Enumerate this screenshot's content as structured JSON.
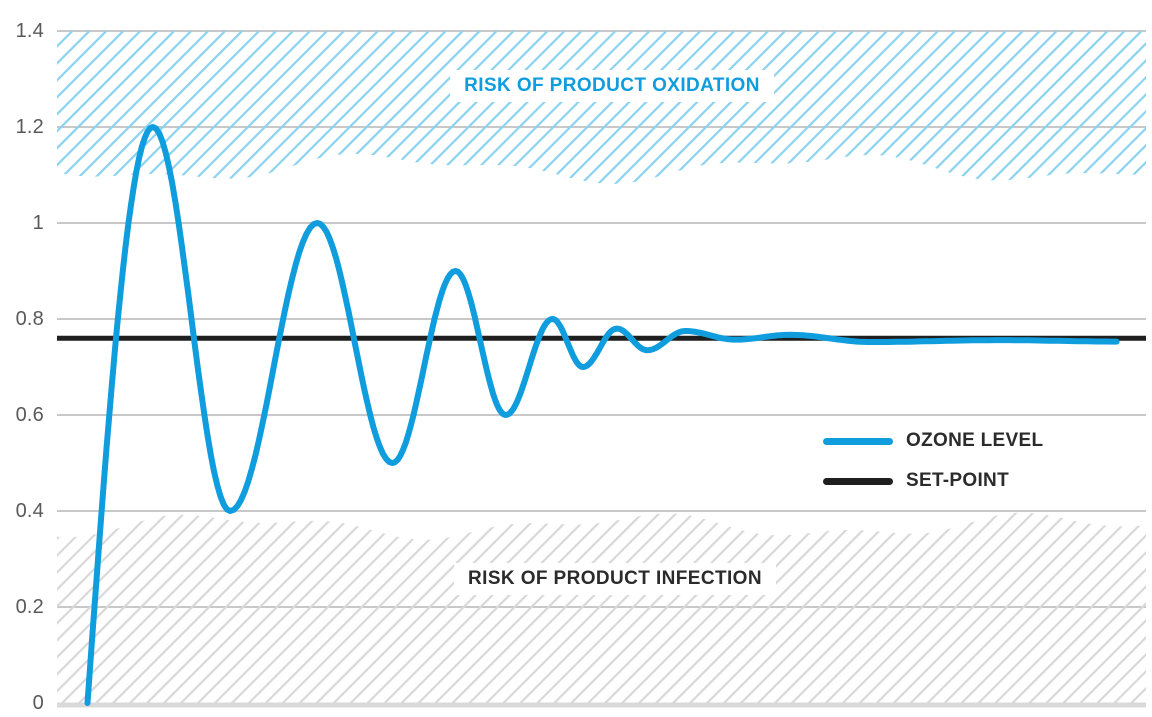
{
  "chart_data": {
    "type": "line",
    "title": "",
    "grid": "horizontal",
    "x_axis": {
      "label": "",
      "tick_labels": []
    },
    "y_axis": {
      "label": "",
      "range": [
        0,
        1.4
      ],
      "tick_values": [
        0,
        0.2,
        0.4,
        0.6,
        0.8,
        1,
        1.2,
        1.4
      ],
      "tick_labels": [
        "0",
        "0.2",
        "0.4",
        "0.6",
        "0.8",
        "1",
        "1.2",
        "1.4"
      ]
    },
    "series": [
      {
        "name": "OZONE LEVEL",
        "type": "damped_oscillation",
        "color": "#0f9dde",
        "points": [
          {
            "t": 0.028,
            "v": 0
          },
          {
            "t": 0.088,
            "v": 1.2
          },
          {
            "t": 0.159,
            "v": 0.4
          },
          {
            "t": 0.239,
            "v": 1.0
          },
          {
            "t": 0.308,
            "v": 0.5
          },
          {
            "t": 0.366,
            "v": 0.9
          },
          {
            "t": 0.412,
            "v": 0.6
          },
          {
            "t": 0.455,
            "v": 0.8
          },
          {
            "t": 0.483,
            "v": 0.7
          },
          {
            "t": 0.514,
            "v": 0.78
          },
          {
            "t": 0.542,
            "v": 0.735
          },
          {
            "t": 0.577,
            "v": 0.775
          },
          {
            "t": 0.623,
            "v": 0.757
          },
          {
            "t": 0.673,
            "v": 0.767
          },
          {
            "t": 0.747,
            "v": 0.752
          },
          {
            "t": 0.866,
            "v": 0.756
          },
          {
            "t": 0.973,
            "v": 0.753
          }
        ]
      },
      {
        "name": "SET-POINT",
        "type": "constant",
        "color": "#1f1f1f",
        "value": 0.76
      }
    ],
    "zones": [
      {
        "label": "RISK OF PRODUCT OXIDATION",
        "position": "top",
        "v_from": 1.4,
        "v_to_approx": 1.1,
        "hatch_color": "#8ad2f0",
        "text_color": "#0f9dde"
      },
      {
        "label": "RISK OF PRODUCT INFECTION",
        "position": "bottom",
        "v_from": 0,
        "v_to_approx": 0.37,
        "hatch_color": "#d8d8d8",
        "text_color": "#2b2b2b"
      }
    ],
    "legend": {
      "position": "middle-right",
      "entries": [
        {
          "label": "OZONE LEVEL",
          "color": "#0f9dde"
        },
        {
          "label": "SET-POINT",
          "color": "#1f1f1f"
        }
      ]
    }
  },
  "colors": {
    "grid": "#b5b5b5",
    "axis": "#d9d9d9",
    "background": "#ffffff"
  }
}
